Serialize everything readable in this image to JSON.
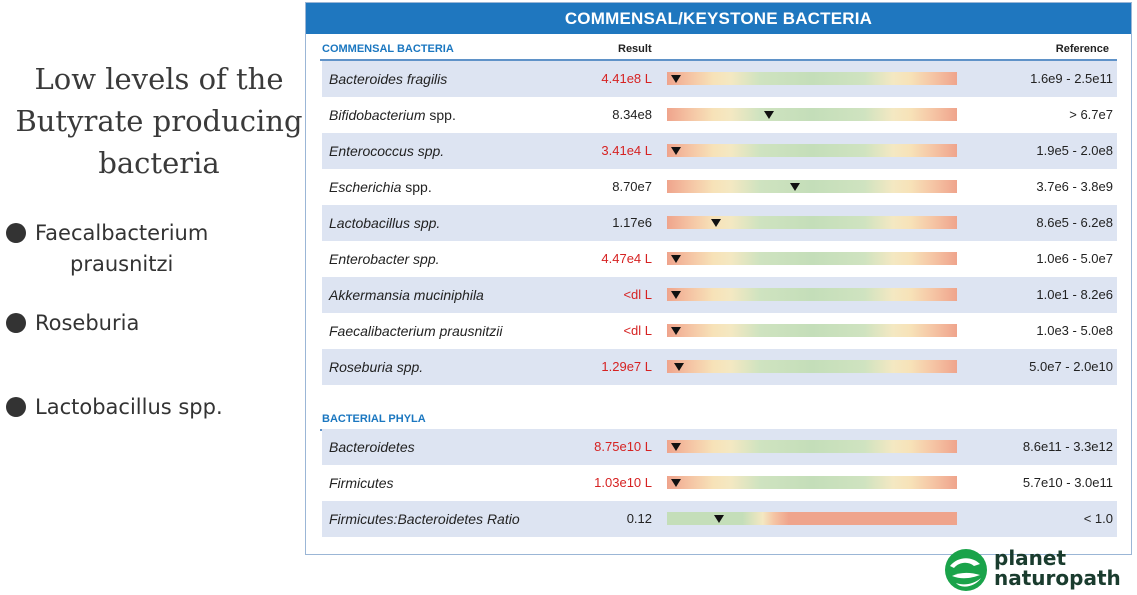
{
  "left_panel": {
    "heading_lines": [
      "Low levels of the",
      "Butyrate producing",
      "bacteria"
    ],
    "bullets": [
      {
        "lines": [
          "Faecalbacterium",
          "prausnitzi"
        ]
      },
      {
        "lines": [
          "Roseburia"
        ]
      },
      {
        "lines": [
          "Lactobacillus spp."
        ]
      }
    ]
  },
  "report": {
    "title": "COMMENSAL/KEYSTONE BACTERIA",
    "commensal_section_label": "COMMENSAL BACTERIA",
    "result_header": "Result",
    "reference_header": "Reference",
    "phyla_section_label": "BACTERIAL PHYLA",
    "commensal_rows": [
      {
        "name": "Bacteroides fragilis",
        "suffix": "",
        "result": "4.41e8 L",
        "flag": true,
        "marker": 0.03,
        "reference": "1.6e9 - 2.5e11",
        "bar": "std"
      },
      {
        "name": "Bifidobacterium",
        "suffix": " spp.",
        "result": "8.34e8",
        "flag": false,
        "marker": 0.35,
        "reference": "> 6.7e7",
        "bar": "std"
      },
      {
        "name": "Enterococcus spp.",
        "suffix": "",
        "result": "3.41e4 L",
        "flag": true,
        "marker": 0.03,
        "reference": "1.9e5 - 2.0e8",
        "bar": "std"
      },
      {
        "name": "Escherichia",
        "suffix": " spp.",
        "result": "8.70e7",
        "flag": false,
        "marker": 0.44,
        "reference": "3.7e6 - 3.8e9",
        "bar": "std"
      },
      {
        "name": "Lactobacillus spp.",
        "suffix": "",
        "result": "1.17e6",
        "flag": false,
        "marker": 0.17,
        "reference": "8.6e5 - 6.2e8",
        "bar": "std"
      },
      {
        "name": "Enterobacter spp.",
        "suffix": "",
        "result": "4.47e4 L",
        "flag": true,
        "marker": 0.03,
        "reference": "1.0e6 - 5.0e7",
        "bar": "std"
      },
      {
        "name": "Akkermansia muciniphila",
        "suffix": "",
        "result": "<dl L",
        "flag": true,
        "marker": 0.03,
        "reference": "1.0e1 - 8.2e6",
        "bar": "std"
      },
      {
        "name": "Faecalibacterium prausnitzii",
        "suffix": "",
        "result": "<dl L",
        "flag": true,
        "marker": 0.03,
        "reference": "1.0e3 - 5.0e8",
        "bar": "std"
      },
      {
        "name": "Roseburia spp.",
        "suffix": "",
        "result": "1.29e7 L",
        "flag": true,
        "marker": 0.04,
        "reference": "5.0e7 - 2.0e10",
        "bar": "std"
      }
    ],
    "phyla_rows": [
      {
        "name": "Bacteroidetes",
        "suffix": "",
        "result": "8.75e10 L",
        "flag": true,
        "marker": 0.03,
        "reference": "8.6e11 - 3.3e12",
        "bar": "std"
      },
      {
        "name": "Firmicutes",
        "suffix": "",
        "result": "1.03e10 L",
        "flag": true,
        "marker": 0.03,
        "reference": "5.7e10 - 3.0e11",
        "bar": "std"
      },
      {
        "name": "Firmicutes:Bacteroidetes Ratio",
        "suffix": "",
        "result": "0.12",
        "flag": false,
        "marker": 0.18,
        "reference": "< 1.0",
        "bar": "ratio"
      }
    ]
  },
  "logo": {
    "line1": "planet",
    "line2": "naturopath",
    "colors": {
      "green": "#1aa34a",
      "dark": "#1a3c2e"
    }
  },
  "colors": {
    "header_blue": "#1f77bf",
    "flag_red": "#d62222",
    "row_shade": "#dde4f2"
  }
}
